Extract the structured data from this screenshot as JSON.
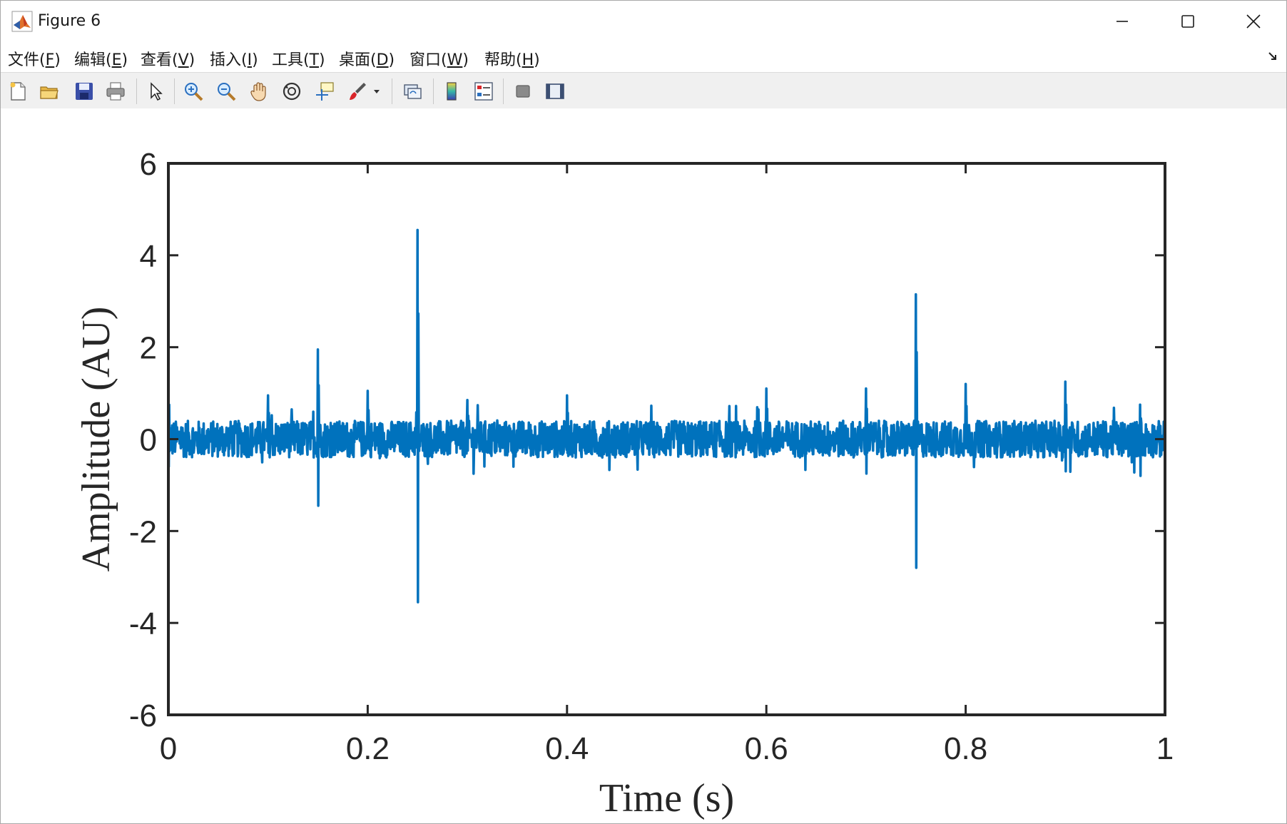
{
  "window": {
    "title": "Figure 6",
    "controls": {
      "minimize_icon": "minimize-icon",
      "maximize_icon": "maximize-icon",
      "close_icon": "close-icon"
    }
  },
  "menubar": {
    "items": [
      {
        "label": "文件(",
        "accel": "F",
        "close": ")"
      },
      {
        "label": "编辑(",
        "accel": "E",
        "close": ")"
      },
      {
        "label": "查看(",
        "accel": "V",
        "close": ")"
      },
      {
        "label": "插入(",
        "accel": "I",
        "close": ")"
      },
      {
        "label": "工具(",
        "accel": "T",
        "close": ")"
      },
      {
        "label": "桌面(",
        "accel": "D",
        "close": ")"
      },
      {
        "label": "窗口(",
        "accel": "W",
        "close": ")"
      },
      {
        "label": "帮助(",
        "accel": "H",
        "close": ")"
      }
    ],
    "dock_icon": "dock-arrow-icon"
  },
  "toolbar": {
    "buttons": [
      "new-figure-icon",
      "open-file-icon",
      "save-icon",
      "print-icon",
      "pointer-icon",
      "zoom-in-icon",
      "zoom-out-icon",
      "pan-icon",
      "rotate-3d-icon",
      "data-cursor-icon",
      "brush-icon",
      "link-plot-icon",
      "colorbar-icon",
      "legend-icon",
      "hide-plot-tools-icon",
      "show-plot-tools-icon"
    ]
  },
  "colors": {
    "series": "#0072BD",
    "axes": "#262626",
    "background": "#ffffff"
  },
  "chart_data": {
    "type": "line",
    "xlabel": "Time (s)",
    "ylabel": "Amplitude (AU)",
    "xlim": [
      0,
      1
    ],
    "ylim": [
      -6,
      6
    ],
    "xticks": [
      0,
      0.2,
      0.4,
      0.6,
      0.8,
      1
    ],
    "xtick_labels": [
      "0",
      "0.2",
      "0.4",
      "0.6",
      "0.8",
      "1"
    ],
    "yticks": [
      -6,
      -4,
      -2,
      0,
      2,
      4,
      6
    ],
    "ytick_labels": [
      "-6",
      "-4",
      "-2",
      "0",
      "2",
      "4",
      "6"
    ],
    "grid": false,
    "box": true,
    "series": [
      {
        "noise_band": [
          -0.4,
          0.4
        ],
        "baseline": 0.0,
        "spikes": [
          {
            "x": 0.0,
            "y_max": 1.25,
            "y_min": -0.6
          },
          {
            "x": 0.1,
            "y_max": 0.95,
            "y_min": -0.3
          },
          {
            "x": 0.15,
            "y_max": 1.95,
            "y_min": -1.45
          },
          {
            "x": 0.2,
            "y_max": 1.05,
            "y_min": -0.2
          },
          {
            "x": 0.25,
            "y_max": 4.55,
            "y_min": -3.55
          },
          {
            "x": 0.3,
            "y_max": 0.85,
            "y_min": -0.25
          },
          {
            "x": 0.4,
            "y_max": 0.95,
            "y_min": -0.3
          },
          {
            "x": 0.6,
            "y_max": 1.1,
            "y_min": -0.2
          },
          {
            "x": 0.7,
            "y_max": 1.1,
            "y_min": -0.75
          },
          {
            "x": 0.75,
            "y_max": 3.15,
            "y_min": -2.8
          },
          {
            "x": 0.8,
            "y_max": 1.2,
            "y_min": -0.2
          },
          {
            "x": 0.9,
            "y_max": 1.25,
            "y_min": -0.7
          },
          {
            "x": 0.975,
            "y_max": 0.75,
            "y_min": -0.8
          }
        ]
      }
    ]
  }
}
